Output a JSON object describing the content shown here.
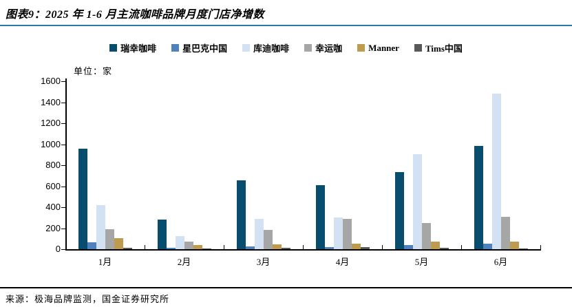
{
  "page": {
    "title": "图表9：2025 年 1-6 月主流咖啡品牌月度门店净增数",
    "source": "来源：极海品牌监测，国金证券研究所"
  },
  "chart_data": {
    "type": "bar",
    "title": "2025 年 1-6 月主流咖啡品牌月度门店净增数",
    "unit_label": "单位：家",
    "categories": [
      "1月",
      "2月",
      "3月",
      "4月",
      "5月",
      "6月"
    ],
    "series": [
      {
        "name": "瑞幸咖啡",
        "color": "#084D6E",
        "values": [
          960,
          280,
          655,
          610,
          735,
          985
        ]
      },
      {
        "name": "星巴克中国",
        "color": "#4F81BD",
        "values": [
          65,
          15,
          25,
          20,
          38,
          50
        ]
      },
      {
        "name": "库迪咖啡",
        "color": "#D3E2F2",
        "values": [
          420,
          125,
          290,
          300,
          905,
          1480
        ]
      },
      {
        "name": "幸运咖",
        "color": "#A6A6A6",
        "values": [
          190,
          70,
          185,
          290,
          250,
          310
        ]
      },
      {
        "name": "Manner",
        "color": "#BF9B50",
        "values": [
          105,
          38,
          45,
          50,
          70,
          70
        ]
      },
      {
        "name": "Tims中国",
        "color": "#595959",
        "values": [
          10,
          5,
          15,
          20,
          10,
          5
        ]
      }
    ],
    "ylim": [
      0,
      1600
    ],
    "ytick_step": 200,
    "yticks": [
      0,
      200,
      400,
      600,
      800,
      1000,
      1200,
      1400,
      1600
    ],
    "legend_position": "top",
    "grid": false
  },
  "colors": {
    "title_rule": "#2F76A8",
    "footer_rule": "#000000",
    "axis": "#000000"
  }
}
